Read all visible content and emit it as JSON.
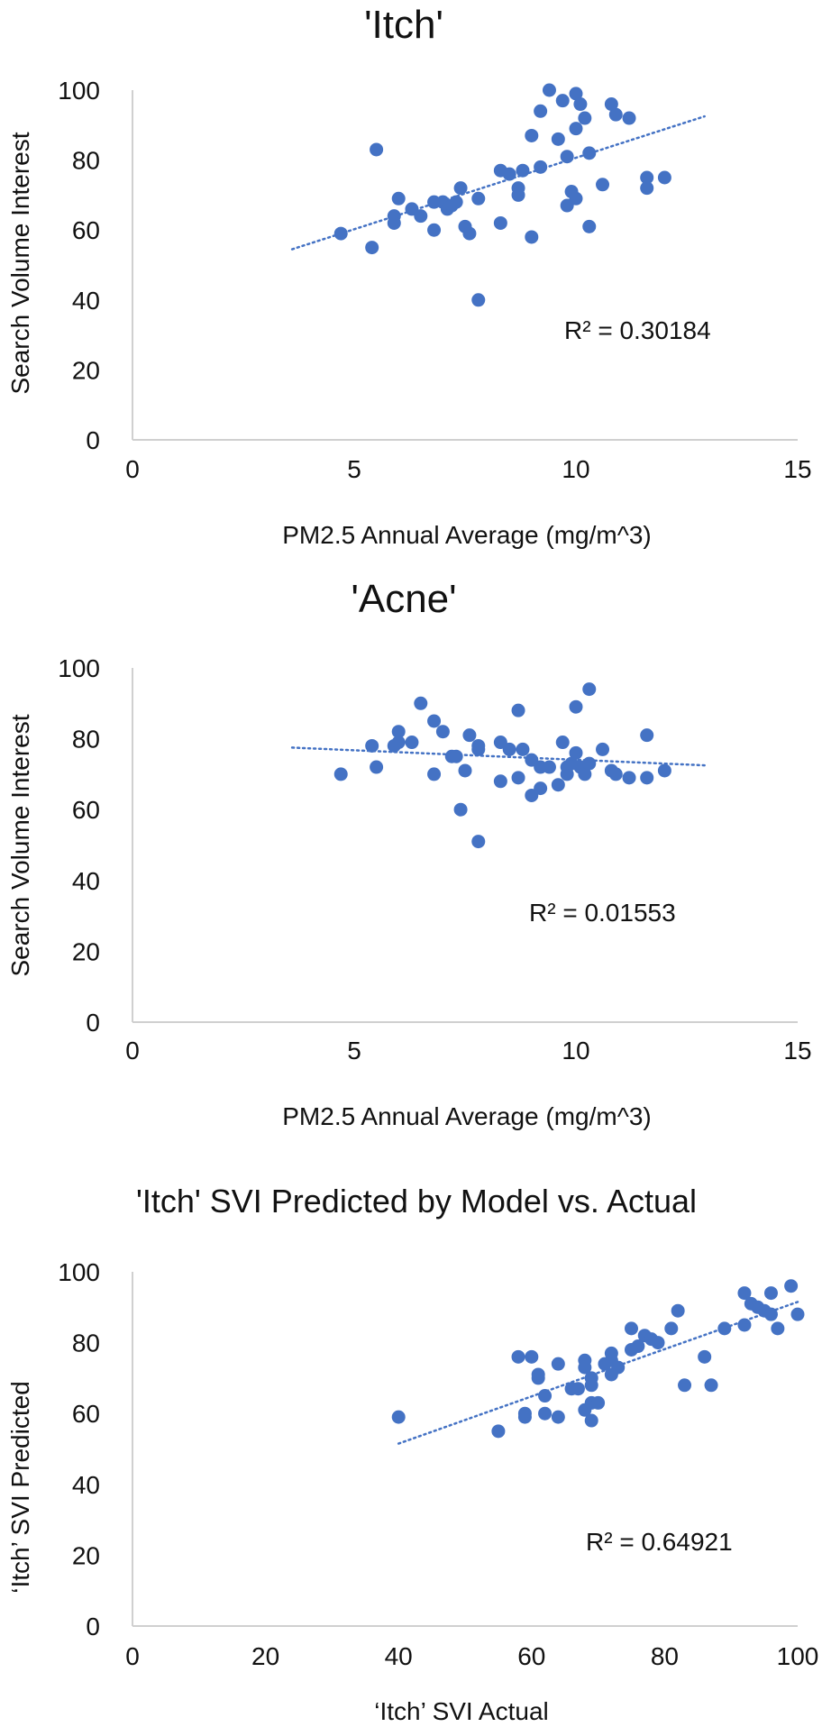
{
  "colors": {
    "point": "#4472c4",
    "trend": "#4472c4",
    "axis": "#d0d0d0"
  },
  "chart_data": [
    {
      "type": "scatter",
      "title": "'Itch'",
      "xlabel": "PM2.5 Annual Average (mg/m^3)",
      "ylabel": "Search Volume Interest",
      "xlim": [
        0,
        15
      ],
      "ylim": [
        0,
        100
      ],
      "xticks": [
        "0",
        "5",
        "10",
        "15"
      ],
      "yticks": [
        "0",
        "20",
        "40",
        "60",
        "80",
        "100"
      ],
      "r2_label": "R² = 0.30184",
      "trendline": {
        "x": [
          3.6,
          12.9
        ],
        "y": [
          54.5,
          92.5
        ]
      },
      "points": [
        [
          4.7,
          59
        ],
        [
          5.4,
          55
        ],
        [
          5.5,
          83
        ],
        [
          5.9,
          64
        ],
        [
          5.9,
          62
        ],
        [
          6.0,
          69
        ],
        [
          6.3,
          66
        ],
        [
          6.5,
          64
        ],
        [
          6.8,
          68
        ],
        [
          6.8,
          60
        ],
        [
          7.0,
          68
        ],
        [
          7.1,
          66
        ],
        [
          7.2,
          67
        ],
        [
          7.3,
          68
        ],
        [
          7.4,
          72
        ],
        [
          7.5,
          61
        ],
        [
          7.6,
          59
        ],
        [
          7.8,
          69
        ],
        [
          7.8,
          40
        ],
        [
          8.3,
          62
        ],
        [
          8.3,
          77
        ],
        [
          8.5,
          76
        ],
        [
          8.7,
          72
        ],
        [
          8.7,
          70
        ],
        [
          8.8,
          77
        ],
        [
          9.0,
          58
        ],
        [
          9.0,
          87
        ],
        [
          9.2,
          78
        ],
        [
          9.2,
          94
        ],
        [
          9.4,
          100
        ],
        [
          9.6,
          86
        ],
        [
          9.7,
          97
        ],
        [
          9.8,
          81
        ],
        [
          9.8,
          67
        ],
        [
          9.9,
          71
        ],
        [
          10.0,
          69
        ],
        [
          10.0,
          89
        ],
        [
          10.0,
          99
        ],
        [
          10.1,
          96
        ],
        [
          10.2,
          92
        ],
        [
          10.3,
          61
        ],
        [
          10.3,
          82
        ],
        [
          10.6,
          73
        ],
        [
          10.8,
          96
        ],
        [
          10.9,
          93
        ],
        [
          11.2,
          92
        ],
        [
          11.6,
          75
        ],
        [
          11.6,
          72
        ],
        [
          12.0,
          75
        ]
      ]
    },
    {
      "type": "scatter",
      "title": "'Acne'",
      "xlabel": "PM2.5 Annual Average (mg/m^3)",
      "ylabel": "Search Volume Interest",
      "xlim": [
        0,
        15
      ],
      "ylim": [
        0,
        100
      ],
      "xticks": [
        "0",
        "5",
        "10",
        "15"
      ],
      "yticks": [
        "0",
        "20",
        "40",
        "60",
        "80",
        "100"
      ],
      "r2_label": "R² = 0.01553",
      "trendline": {
        "x": [
          3.6,
          12.9
        ],
        "y": [
          77.5,
          72.5
        ]
      },
      "points": [
        [
          4.7,
          70
        ],
        [
          5.4,
          78
        ],
        [
          5.5,
          72
        ],
        [
          5.9,
          78
        ],
        [
          6.0,
          82
        ],
        [
          6.0,
          79
        ],
        [
          6.3,
          79
        ],
        [
          6.5,
          90
        ],
        [
          6.8,
          85
        ],
        [
          6.8,
          70
        ],
        [
          7.0,
          82
        ],
        [
          7.2,
          75
        ],
        [
          7.3,
          75
        ],
        [
          7.4,
          60
        ],
        [
          7.5,
          71
        ],
        [
          7.6,
          81
        ],
        [
          7.8,
          78
        ],
        [
          7.8,
          77
        ],
        [
          7.8,
          51
        ],
        [
          8.3,
          79
        ],
        [
          8.3,
          68
        ],
        [
          8.5,
          77
        ],
        [
          8.7,
          88
        ],
        [
          8.7,
          69
        ],
        [
          8.8,
          77
        ],
        [
          9.0,
          74
        ],
        [
          9.0,
          64
        ],
        [
          9.2,
          72
        ],
        [
          9.2,
          66
        ],
        [
          9.4,
          72
        ],
        [
          9.6,
          67
        ],
        [
          9.7,
          79
        ],
        [
          9.8,
          72
        ],
        [
          9.8,
          70
        ],
        [
          9.9,
          73
        ],
        [
          10.0,
          76
        ],
        [
          10.0,
          89
        ],
        [
          10.1,
          72
        ],
        [
          10.2,
          70
        ],
        [
          10.3,
          94
        ],
        [
          10.3,
          73
        ],
        [
          10.6,
          77
        ],
        [
          10.8,
          71
        ],
        [
          10.9,
          70
        ],
        [
          11.2,
          69
        ],
        [
          11.6,
          81
        ],
        [
          11.6,
          69
        ],
        [
          12.0,
          71
        ]
      ]
    },
    {
      "type": "scatter",
      "title": "'Itch' SVI Predicted by Model vs. Actual",
      "xlabel": "‘Itch’ SVI Actual",
      "ylabel": "‘Itch’ SVI Predicted",
      "xlim": [
        0,
        100
      ],
      "ylim": [
        0,
        100
      ],
      "xticks": [
        "0",
        "20",
        "40",
        "60",
        "80",
        "100"
      ],
      "yticks": [
        "0",
        "20",
        "40",
        "60",
        "80",
        "100"
      ],
      "r2_label": "R² = 0.64921",
      "trendline": {
        "x": [
          40,
          100
        ],
        "y": [
          51.5,
          91.5
        ]
      },
      "points": [
        [
          40,
          59
        ],
        [
          55,
          55
        ],
        [
          58,
          76
        ],
        [
          59,
          59
        ],
        [
          59,
          60
        ],
        [
          60,
          76
        ],
        [
          61,
          70
        ],
        [
          61,
          71
        ],
        [
          62,
          60
        ],
        [
          62,
          65
        ],
        [
          64,
          74
        ],
        [
          64,
          59
        ],
        [
          66,
          67
        ],
        [
          67,
          67
        ],
        [
          68,
          75
        ],
        [
          68,
          73
        ],
        [
          68,
          61
        ],
        [
          69,
          70
        ],
        [
          69,
          68
        ],
        [
          69,
          63
        ],
        [
          69,
          58
        ],
        [
          70,
          63
        ],
        [
          71,
          74
        ],
        [
          72,
          75
        ],
        [
          72,
          71
        ],
        [
          72,
          77
        ],
        [
          73,
          73
        ],
        [
          75,
          78
        ],
        [
          75,
          84
        ],
        [
          76,
          79
        ],
        [
          77,
          82
        ],
        [
          78,
          81
        ],
        [
          79,
          80
        ],
        [
          81,
          84
        ],
        [
          82,
          89
        ],
        [
          83,
          68
        ],
        [
          86,
          76
        ],
        [
          87,
          68
        ],
        [
          89,
          84
        ],
        [
          92,
          94
        ],
        [
          92,
          85
        ],
        [
          93,
          91
        ],
        [
          94,
          90
        ],
        [
          95,
          89
        ],
        [
          96,
          94
        ],
        [
          96,
          88
        ],
        [
          97,
          84
        ],
        [
          99,
          96
        ],
        [
          100,
          88
        ]
      ]
    }
  ]
}
